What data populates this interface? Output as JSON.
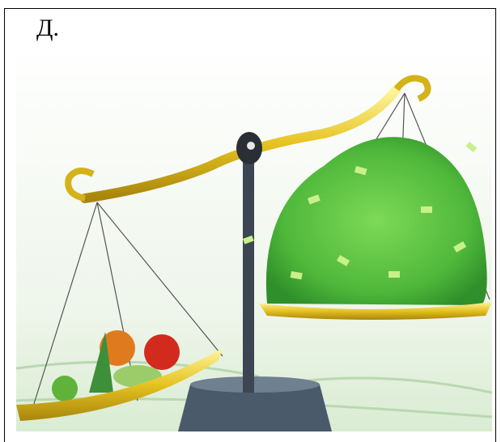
{
  "label": "Д."
}
